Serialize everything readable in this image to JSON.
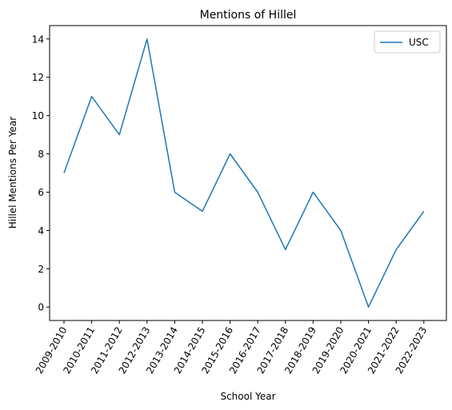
{
  "chart_data": {
    "type": "line",
    "title": "Mentions of Hillel",
    "xlabel": "School Year",
    "ylabel": "Hillel Mentions Per Year",
    "categories": [
      "2009-2010",
      "2010-2011",
      "2011-2012",
      "2012-2013",
      "2013-2014",
      "2014-2015",
      "2015-2016",
      "2016-2017",
      "2017-2018",
      "2018-2019",
      "2019-2020",
      "2020-2021",
      "2021-2022",
      "2022-2023"
    ],
    "series": [
      {
        "name": "USC",
        "values": [
          7,
          11,
          9,
          14,
          6,
          5,
          8,
          6,
          3,
          6,
          4,
          0,
          3,
          5
        ]
      }
    ],
    "ylim": [
      -0.7,
      14.7
    ],
    "yticks": [
      0,
      2,
      4,
      6,
      8,
      10,
      12,
      14
    ],
    "grid": false,
    "legend_position": "top-right",
    "colors": {
      "USC": "#1f77b4"
    }
  }
}
